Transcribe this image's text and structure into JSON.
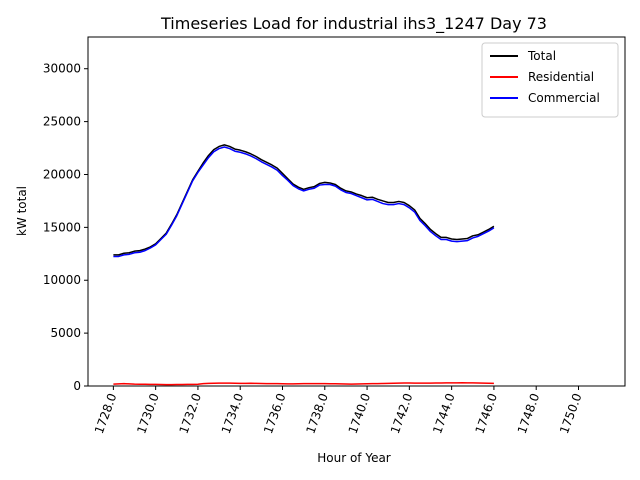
{
  "chart_data": {
    "type": "line",
    "title": "Timeseries Load for industrial ihs3_1247  Day 73",
    "xlabel": "Hour of Year",
    "ylabel": "kW total",
    "xlim": [
      1726.8,
      1752.2
    ],
    "ylim": [
      0,
      33000
    ],
    "x_ticks": [
      1728,
      1730,
      1732,
      1734,
      1736,
      1738,
      1740,
      1742,
      1744,
      1746,
      1748,
      1750
    ],
    "x_tick_labels": [
      "1728.0",
      "1730.0",
      "1732.0",
      "1734.0",
      "1736.0",
      "1738.0",
      "1740.0",
      "1742.0",
      "1744.0",
      "1746.0",
      "1748.0",
      "1750.0"
    ],
    "y_ticks": [
      0,
      5000,
      10000,
      15000,
      20000,
      25000,
      30000
    ],
    "y_tick_labels": [
      "0",
      "5000",
      "10000",
      "15000",
      "20000",
      "25000",
      "30000"
    ],
    "legend_position": "top-right",
    "x_start": 1728.0,
    "x_step": 0.25,
    "series": [
      {
        "name": "Total",
        "color": "#000000",
        "values": [
          12400,
          12400,
          12550,
          12600,
          12750,
          12800,
          12950,
          13150,
          13450,
          13950,
          14450,
          15300,
          16200,
          17300,
          18400,
          19500,
          20300,
          21100,
          21800,
          22350,
          22650,
          22800,
          22650,
          22400,
          22300,
          22150,
          21950,
          21700,
          21400,
          21150,
          20900,
          20600,
          20100,
          19600,
          19100,
          18800,
          18600,
          18750,
          18850,
          19150,
          19250,
          19200,
          19050,
          18700,
          18450,
          18350,
          18150,
          18000,
          17800,
          17850,
          17650,
          17500,
          17350,
          17350,
          17450,
          17350,
          17050,
          16650,
          15850,
          15350,
          14800,
          14400,
          14050,
          14050,
          13900,
          13850,
          13900,
          13950,
          14200,
          14300,
          14550,
          14800,
          15100
        ]
      },
      {
        "name": "Residential",
        "color": "#ff0000",
        "values": [
          180,
          200,
          220,
          200,
          180,
          170,
          160,
          150,
          150,
          140,
          130,
          130,
          140,
          140,
          150,
          150,
          170,
          230,
          250,
          260,
          270,
          270,
          270,
          260,
          250,
          250,
          260,
          250,
          240,
          230,
          230,
          220,
          210,
          200,
          200,
          210,
          220,
          230,
          230,
          220,
          220,
          210,
          210,
          200,
          190,
          180,
          190,
          200,
          210,
          220,
          230,
          240,
          250,
          260,
          270,
          280,
          280,
          270,
          270,
          270,
          270,
          280,
          280,
          290,
          300,
          300,
          310,
          300,
          290,
          280,
          270,
          260,
          250
        ]
      },
      {
        "name": "Commercial",
        "color": "#0000ff",
        "values": [
          12250,
          12250,
          12400,
          12450,
          12600,
          12650,
          12800,
          13050,
          13350,
          13850,
          14350,
          15200,
          16100,
          17200,
          18300,
          19400,
          20200,
          20900,
          21600,
          22150,
          22450,
          22600,
          22450,
          22200,
          22100,
          21950,
          21750,
          21500,
          21200,
          20950,
          20700,
          20400,
          19900,
          19450,
          18950,
          18650,
          18450,
          18600,
          18700,
          19000,
          19050,
          19050,
          18900,
          18550,
          18300,
          18200,
          18000,
          17800,
          17600,
          17650,
          17450,
          17250,
          17150,
          17150,
          17250,
          17150,
          16850,
          16450,
          15650,
          15150,
          14600,
          14200,
          13850,
          13850,
          13700,
          13650,
          13700,
          13750,
          14000,
          14150,
          14400,
          14650,
          14950
        ]
      }
    ]
  }
}
